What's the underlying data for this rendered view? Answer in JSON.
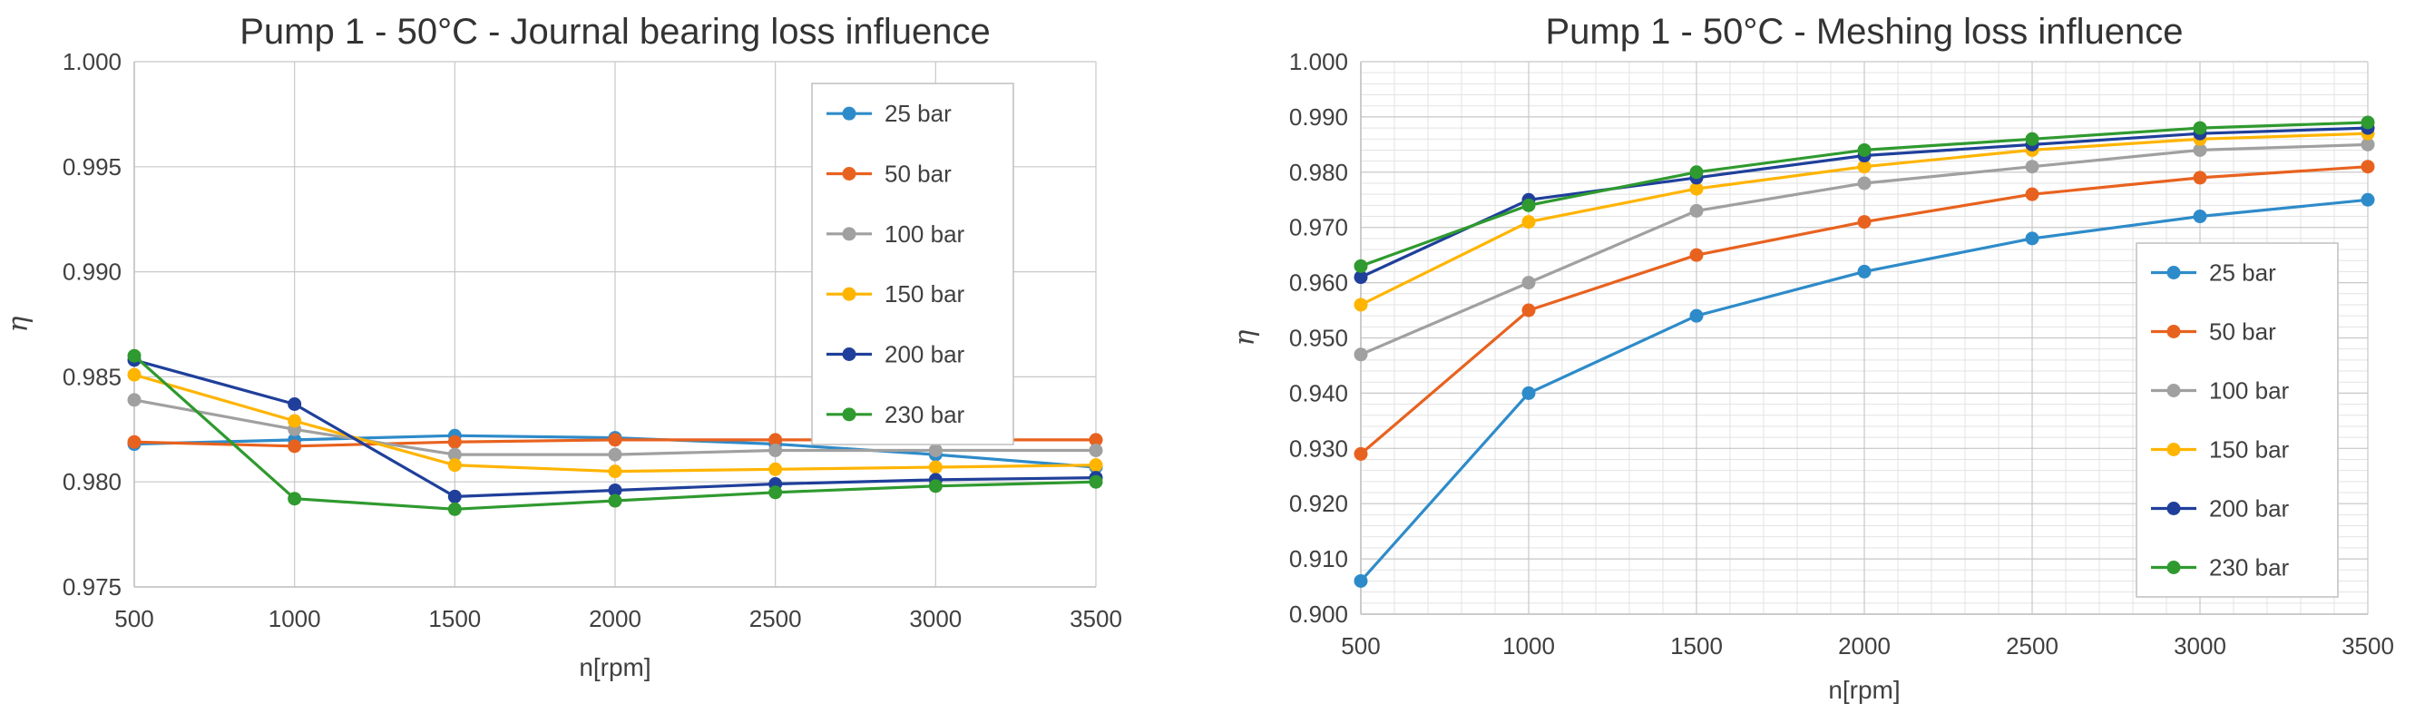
{
  "chart_data": [
    {
      "type": "line",
      "title": "Pump 1 - 50°C - Journal bearing loss influence",
      "xlabel": "n[rpm]",
      "ylabel": "η",
      "x": [
        500,
        1000,
        1500,
        2000,
        2500,
        3000,
        3500
      ],
      "x_tick_labels": [
        "500",
        "1000",
        "1500",
        "2000",
        "2500",
        "3000",
        "3500"
      ],
      "ylim": [
        0.975,
        1.0
      ],
      "y_tick_labels": [
        "0.975",
        "0.980",
        "0.985",
        "0.990",
        "0.995",
        "1.000"
      ],
      "legend_position": "top-right",
      "series": [
        {
          "name": "25 bar",
          "color": "#2e8bc9",
          "values": [
            0.9818,
            0.982,
            0.9822,
            0.9821,
            0.9818,
            0.9813,
            0.9807
          ]
        },
        {
          "name": "50 bar",
          "color": "#e8621f",
          "values": [
            0.9819,
            0.9817,
            0.9819,
            0.982,
            0.982,
            0.982,
            0.982
          ]
        },
        {
          "name": "100 bar",
          "color": "#a0a0a0",
          "values": [
            0.9839,
            0.9825,
            0.9813,
            0.9813,
            0.9815,
            0.9815,
            0.9815
          ]
        },
        {
          "name": "150 bar",
          "color": "#ffb400",
          "values": [
            0.9851,
            0.9829,
            0.9808,
            0.9805,
            0.9806,
            0.9807,
            0.9808
          ]
        },
        {
          "name": "200 bar",
          "color": "#1f3f9a",
          "values": [
            0.9858,
            0.9837,
            0.9793,
            0.9796,
            0.9799,
            0.9801,
            0.9802
          ]
        },
        {
          "name": "230 bar",
          "color": "#2f9a2f",
          "values": [
            0.986,
            0.9792,
            0.9787,
            0.9791,
            0.9795,
            0.9798,
            0.98
          ]
        }
      ]
    },
    {
      "type": "line",
      "title": "Pump 1 - 50°C - Meshing loss influence",
      "xlabel": "n[rpm]",
      "ylabel": "η",
      "x": [
        500,
        1000,
        1500,
        2000,
        2500,
        3000,
        3500
      ],
      "x_tick_labels": [
        "500",
        "1000",
        "1500",
        "2000",
        "2500",
        "3000",
        "3500"
      ],
      "ylim": [
        0.9,
        1.0
      ],
      "y_tick_labels": [
        "0.900",
        "0.910",
        "0.920",
        "0.930",
        "0.940",
        "0.950",
        "0.960",
        "0.970",
        "0.980",
        "0.990",
        "1.000"
      ],
      "legend_position": "bottom-right",
      "series": [
        {
          "name": "25 bar",
          "color": "#2e8bc9",
          "values": [
            0.906,
            0.94,
            0.954,
            0.962,
            0.968,
            0.972,
            0.975
          ]
        },
        {
          "name": "50 bar",
          "color": "#e8621f",
          "values": [
            0.929,
            0.955,
            0.965,
            0.971,
            0.976,
            0.979,
            0.981
          ]
        },
        {
          "name": "100 bar",
          "color": "#a0a0a0",
          "values": [
            0.947,
            0.96,
            0.973,
            0.978,
            0.981,
            0.984,
            0.985
          ]
        },
        {
          "name": "150 bar",
          "color": "#ffb400",
          "values": [
            0.956,
            0.971,
            0.977,
            0.981,
            0.984,
            0.986,
            0.987
          ]
        },
        {
          "name": "200 bar",
          "color": "#1f3f9a",
          "values": [
            0.961,
            0.975,
            0.979,
            0.983,
            0.985,
            0.987,
            0.988
          ]
        },
        {
          "name": "230 bar",
          "color": "#2f9a2f",
          "values": [
            0.963,
            0.974,
            0.98,
            0.984,
            0.986,
            0.988,
            0.989
          ]
        }
      ]
    }
  ]
}
